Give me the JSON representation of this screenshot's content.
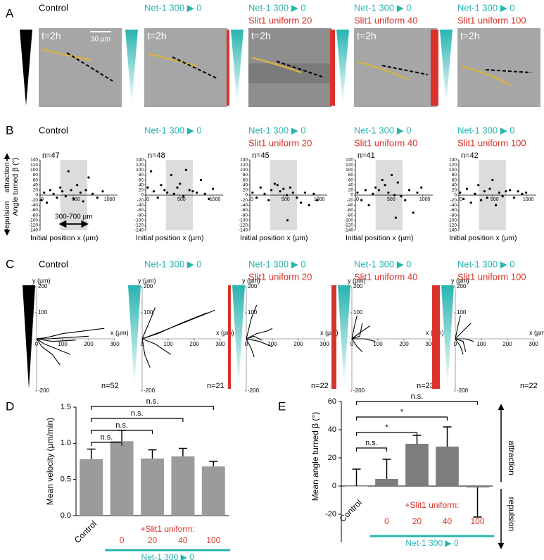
{
  "panel_labels": [
    "A",
    "B",
    "C",
    "D",
    "E"
  ],
  "colors": {
    "control": "#000000",
    "netrin": "#27b5b1",
    "slit": "#d9322a",
    "bar": "#9b9b9b",
    "bar_dark": "#7d7d7d",
    "band": "#dcdcdc",
    "trace": "#d4b24a"
  },
  "conditions": [
    {
      "name": "Control"
    },
    {
      "name": "Net-1 300 ▶ 0"
    },
    {
      "name": "Net-1 300 ▶ 0",
      "slit": "Slit1 uniform 20"
    },
    {
      "name": "Net-1 300 ▶ 0",
      "slit": "Slit1 uniform 40"
    },
    {
      "name": "Net-1 300 ▶ 0",
      "slit": "Slit1 uniform 100"
    }
  ],
  "micrographs": {
    "time": "t=2h",
    "scale_bar": "30 µm"
  },
  "chart_data": [
    {
      "type": "scatter",
      "n": "n=47",
      "y_label": "Angle turned β (°)",
      "attraction": "attraction",
      "repulsion": "repulsion",
      "x_label": "Initial position x (µm)",
      "range_label": "300-700 µm",
      "band": [
        300,
        700
      ],
      "xlim": [
        0,
        1150
      ],
      "xticks": [
        0,
        500,
        1000
      ],
      "ylim": [
        -140,
        140
      ],
      "yticks": [
        140,
        120,
        100,
        80,
        60,
        40,
        20,
        0,
        -20,
        -40,
        -60,
        -80,
        -100,
        -120,
        -140
      ],
      "x": [
        20,
        60,
        100,
        150,
        200,
        250,
        300,
        330,
        380,
        420,
        460,
        500,
        550,
        600,
        640,
        680,
        720,
        780,
        850,
        930
      ],
      "y": [
        -20,
        10,
        -30,
        20,
        5,
        -10,
        30,
        15,
        -5,
        95,
        20,
        -15,
        40,
        10,
        -25,
        20,
        70,
        5,
        -10,
        15
      ]
    },
    {
      "type": "scatter",
      "n": "n=48",
      "x_label": "Initial position x (µm)",
      "band": [
        300,
        700
      ],
      "xlim": [
        0,
        1150
      ],
      "xticks": [
        0,
        500,
        1000
      ],
      "ylim": [
        -140,
        140
      ],
      "yticks": [
        140,
        120,
        100,
        80,
        60,
        40,
        20,
        0,
        -20,
        -40,
        -60,
        -80,
        -100,
        -120,
        -140
      ],
      "x": [
        30,
        80,
        120,
        180,
        230,
        280,
        320,
        380,
        420,
        470,
        510,
        560,
        600,
        650,
        700,
        760,
        820,
        880,
        940,
        1000
      ],
      "y": [
        30,
        95,
        15,
        -10,
        40,
        20,
        10,
        80,
        5,
        30,
        45,
        -5,
        100,
        20,
        15,
        10,
        60,
        5,
        -15,
        25
      ]
    },
    {
      "type": "scatter",
      "n": "n=45",
      "x_label": "Initial position x (µm)",
      "band": [
        300,
        700
      ],
      "xlim": [
        0,
        1150
      ],
      "xticks": [
        0,
        500,
        1000
      ],
      "ylim": [
        -140,
        140
      ],
      "yticks": [
        140,
        120,
        100,
        80,
        60,
        40,
        20,
        0,
        -20,
        -40,
        -60,
        -80,
        -100,
        -120,
        -140
      ],
      "x": [
        40,
        100,
        160,
        220,
        280,
        320,
        370,
        410,
        450,
        500,
        550,
        600,
        640,
        700,
        760,
        820,
        880,
        950,
        1000,
        560
      ],
      "y": [
        10,
        -10,
        30,
        5,
        -20,
        20,
        45,
        40,
        15,
        25,
        0,
        30,
        10,
        -10,
        -30,
        10,
        -40,
        5,
        -20,
        -100
      ]
    },
    {
      "type": "scatter",
      "n": "n=41",
      "x_label": "Initial position x (µm)",
      "band": [
        300,
        700
      ],
      "xlim": [
        0,
        1150
      ],
      "xticks": [
        0,
        500,
        1000
      ],
      "ylim": [
        -140,
        140
      ],
      "yticks": [
        140,
        120,
        100,
        80,
        60,
        40,
        20,
        0,
        -20,
        -40,
        -60,
        -80,
        -100,
        -120,
        -140
      ],
      "x": [
        30,
        90,
        150,
        200,
        260,
        300,
        350,
        400,
        440,
        490,
        540,
        580,
        630,
        680,
        740,
        800,
        860,
        920,
        980,
        600
      ],
      "y": [
        10,
        -20,
        20,
        -40,
        5,
        30,
        20,
        60,
        40,
        10,
        80,
        0,
        50,
        -5,
        -20,
        20,
        -70,
        10,
        30,
        -90
      ]
    },
    {
      "type": "scatter",
      "n": "n=42",
      "x_label": "Initial position x (µm)",
      "band": [
        300,
        700
      ],
      "xlim": [
        0,
        1150
      ],
      "xticks": [
        0,
        500,
        1000
      ],
      "ylim": [
        -140,
        140
      ],
      "yticks": [
        140,
        120,
        100,
        80,
        60,
        40,
        20,
        0,
        -20,
        -40,
        -60,
        -80,
        -100,
        -120,
        -140
      ],
      "x": [
        20,
        70,
        120,
        180,
        240,
        290,
        330,
        380,
        420,
        460,
        500,
        550,
        600,
        650,
        700,
        760,
        820,
        880,
        940,
        1000
      ],
      "y": [
        10,
        -15,
        25,
        -30,
        5,
        40,
        -20,
        15,
        -10,
        25,
        60,
        -40,
        10,
        -5,
        15,
        20,
        -10,
        15,
        5,
        10
      ]
    },
    {
      "type": "tracks",
      "n": "n=52",
      "x_label": "x (µm)",
      "y_label": "y (µm)",
      "xlim": [
        0,
        300
      ],
      "xticks": [
        0,
        100,
        200,
        300
      ],
      "ylim": [
        -200,
        200
      ],
      "yticks": [
        200,
        100,
        -200
      ],
      "tracks": [
        {
          "x": [
            0,
            50,
            120,
            200
          ],
          "y": [
            0,
            0,
            5,
            10
          ]
        },
        {
          "x": [
            0,
            40,
            100,
            260
          ],
          "y": [
            0,
            5,
            20,
            40
          ]
        },
        {
          "x": [
            0,
            20,
            60,
            90
          ],
          "y": [
            0,
            -30,
            -60,
            -100
          ]
        },
        {
          "x": [
            0,
            60,
            150
          ],
          "y": [
            0,
            -10,
            -5
          ]
        },
        {
          "x": [
            0,
            30,
            80,
            130
          ],
          "y": [
            0,
            -20,
            -40,
            -60
          ]
        }
      ]
    },
    {
      "type": "tracks",
      "n": "n=21",
      "x_label": "x (µm)",
      "y_label": "y (µm)",
      "xlim": [
        0,
        300
      ],
      "xticks": [
        0,
        100,
        200,
        300
      ],
      "ylim": [
        -200,
        200
      ],
      "yticks": [
        200,
        100,
        -200
      ],
      "tracks": [
        {
          "x": [
            0,
            60,
            150,
            250
          ],
          "y": [
            0,
            20,
            60,
            100
          ]
        },
        {
          "x": [
            0,
            80,
            180,
            280
          ],
          "y": [
            0,
            30,
            70,
            110
          ]
        },
        {
          "x": [
            0,
            30,
            50
          ],
          "y": [
            0,
            70,
            120
          ]
        },
        {
          "x": [
            0,
            50,
            110
          ],
          "y": [
            0,
            -20,
            -60
          ]
        },
        {
          "x": [
            0,
            10,
            30
          ],
          "y": [
            0,
            -60,
            -110
          ]
        }
      ]
    },
    {
      "type": "tracks",
      "n": "n=22",
      "x_label": "x (µm)",
      "y_label": "y (µm)",
      "xlim": [
        0,
        300
      ],
      "xticks": [
        0,
        100,
        200,
        300
      ],
      "ylim": [
        -200,
        200
      ],
      "yticks": [
        200,
        100,
        -200
      ],
      "tracks": [
        {
          "x": [
            0,
            20,
            40
          ],
          "y": [
            0,
            80,
            130
          ]
        },
        {
          "x": [
            0,
            40,
            80,
            100
          ],
          "y": [
            0,
            20,
            30,
            40
          ]
        },
        {
          "x": [
            0,
            50,
            100
          ],
          "y": [
            0,
            -10,
            -30
          ]
        },
        {
          "x": [
            0,
            20,
            30
          ],
          "y": [
            0,
            -40,
            -70
          ]
        },
        {
          "x": [
            0,
            30,
            60
          ],
          "y": [
            0,
            10,
            -5
          ]
        }
      ]
    },
    {
      "type": "tracks",
      "n": "n=23",
      "x_label": "x (µm)",
      "y_label": "y (µm)",
      "xlim": [
        0,
        300
      ],
      "xticks": [
        0,
        100,
        200,
        300
      ],
      "ylim": [
        -200,
        200
      ],
      "yticks": [
        200,
        100,
        -200
      ],
      "tracks": [
        {
          "x": [
            0,
            10,
            20
          ],
          "y": [
            0,
            50,
            90
          ]
        },
        {
          "x": [
            0,
            40,
            70
          ],
          "y": [
            0,
            30,
            50
          ]
        },
        {
          "x": [
            0,
            50,
            90
          ],
          "y": [
            0,
            0,
            -10
          ]
        },
        {
          "x": [
            0,
            20,
            40
          ],
          "y": [
            0,
            -30,
            -50
          ]
        },
        {
          "x": [
            0,
            30,
            40
          ],
          "y": [
            0,
            10,
            60
          ]
        }
      ]
    },
    {
      "type": "tracks",
      "n": "n=22",
      "x_label": "x (µm)",
      "y_label": "y (µm)",
      "xlim": [
        0,
        300
      ],
      "xticks": [
        0,
        100,
        200,
        300
      ],
      "ylim": [
        -200,
        200
      ],
      "yticks": [
        200,
        100,
        -200
      ],
      "tracks": [
        {
          "x": [
            0,
            10,
            20
          ],
          "y": [
            0,
            50,
            90
          ]
        },
        {
          "x": [
            0,
            30,
            60
          ],
          "y": [
            0,
            30,
            60
          ]
        },
        {
          "x": [
            0,
            40,
            70
          ],
          "y": [
            0,
            0,
            -10
          ]
        },
        {
          "x": [
            0,
            20,
            30
          ],
          "y": [
            0,
            -30,
            -60
          ]
        },
        {
          "x": [
            0,
            30,
            40
          ],
          "y": [
            0,
            -10,
            -50
          ]
        }
      ]
    },
    {
      "type": "bar",
      "y_label": "Mean velocity (µm/min)",
      "categories": [
        "Control",
        "0",
        "20",
        "40",
        "100"
      ],
      "group_label": "+Slit1 uniform:",
      "netrin_label": "Net-1 300 ▶ 0",
      "values": [
        0.78,
        1.03,
        0.79,
        0.82,
        0.68
      ],
      "errors": [
        0.14,
        0.15,
        0.12,
        0.11,
        0.07
      ],
      "comparisons": [
        "n.s.",
        "n.s.",
        "n.s.",
        "n.s."
      ],
      "ylim": [
        0,
        1.5
      ],
      "yticks": [
        {
          "value": 0,
          "label": "0.0"
        },
        {
          "value": 0.5,
          "label": "0.5"
        },
        {
          "value": 1,
          "label": "1.0"
        },
        {
          "value": 1.5,
          "label": "1.5"
        }
      ]
    },
    {
      "type": "bar",
      "y_label": "Mean angle turned β (°)",
      "categories": [
        "Control",
        "0",
        "20",
        "40",
        "100"
      ],
      "group_label": "+Slit1 uniform:",
      "netrin_label": "Net-1 300 ▶ 0",
      "attraction": "attraction",
      "repulsion": "repulsion",
      "values": [
        0,
        5,
        30,
        28,
        -1
      ],
      "errors": [
        12,
        14,
        6,
        14,
        21
      ],
      "comparisons": [
        "n.s.",
        "*",
        "*",
        "n.s."
      ],
      "ylim": [
        -40,
        60
      ],
      "yticks": [
        -20,
        0,
        20,
        40,
        60
      ]
    }
  ]
}
